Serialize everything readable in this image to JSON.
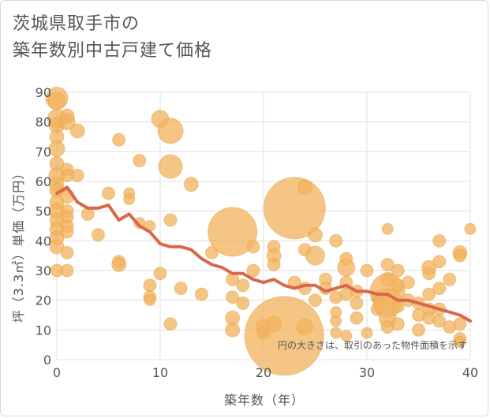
{
  "title": {
    "line1": "茨城県取手市の",
    "line2": "築年数別中古戸建て価格"
  },
  "colors": {
    "bubble": "#f2b25c",
    "bubble_stroke": "#e8a040",
    "trend": "#d9674c",
    "grid": "#e0e0e0",
    "text": "#555555"
  },
  "note": "円の大きさは、取引のあった物件面積を示す",
  "chart_data": {
    "type": "scatter",
    "title": "茨城県取手市の築年数別中古戸建て価格",
    "xlabel": "築年数（年）",
    "ylabel": "坪（3.3㎡）単価（万円）",
    "xlim": [
      0,
      40
    ],
    "ylim": [
      0,
      90
    ],
    "x_ticks": [
      "0",
      "10",
      "20",
      "30",
      "40"
    ],
    "y_ticks": [
      "0",
      "10",
      "20",
      "30",
      "40",
      "50",
      "60",
      "70",
      "80",
      "90"
    ],
    "grid": true,
    "trend": {
      "x": [
        0,
        1,
        2,
        3,
        4,
        5,
        6,
        7,
        8,
        9,
        10,
        11,
        12,
        13,
        14,
        15,
        16,
        17,
        18,
        19,
        20,
        21,
        22,
        23,
        24,
        25,
        26,
        27,
        28,
        29,
        30,
        31,
        32,
        33,
        34,
        35,
        36,
        37,
        38,
        39,
        40
      ],
      "y": [
        56,
        58,
        53,
        51,
        51,
        52,
        47,
        49,
        45,
        43,
        39,
        38,
        38,
        37,
        34,
        32,
        31,
        29,
        29,
        27,
        26,
        27,
        25,
        24,
        25,
        25,
        23,
        24,
        25,
        23,
        23,
        22,
        22,
        20,
        20,
        19,
        18,
        17,
        16,
        15,
        13
      ]
    },
    "points": [
      {
        "x": 0,
        "y": 88,
        "s": 14
      },
      {
        "x": 0,
        "y": 87,
        "s": 11
      },
      {
        "x": 0,
        "y": 81,
        "s": 12
      },
      {
        "x": 0,
        "y": 79,
        "s": 10
      },
      {
        "x": 0,
        "y": 75,
        "s": 9
      },
      {
        "x": 0,
        "y": 71,
        "s": 10
      },
      {
        "x": 0,
        "y": 66,
        "s": 9
      },
      {
        "x": 0,
        "y": 62,
        "s": 10
      },
      {
        "x": 0,
        "y": 59,
        "s": 9
      },
      {
        "x": 0,
        "y": 57,
        "s": 9
      },
      {
        "x": 0,
        "y": 53,
        "s": 9
      },
      {
        "x": 0,
        "y": 50,
        "s": 10
      },
      {
        "x": 0,
        "y": 47,
        "s": 9
      },
      {
        "x": 0,
        "y": 44,
        "s": 9
      },
      {
        "x": 0,
        "y": 41,
        "s": 9
      },
      {
        "x": 0,
        "y": 38,
        "s": 9
      },
      {
        "x": 0,
        "y": 30,
        "s": 8
      },
      {
        "x": 1,
        "y": 82,
        "s": 9
      },
      {
        "x": 1,
        "y": 80,
        "s": 10
      },
      {
        "x": 1,
        "y": 64,
        "s": 8
      },
      {
        "x": 1,
        "y": 62,
        "s": 8
      },
      {
        "x": 1,
        "y": 55,
        "s": 9
      },
      {
        "x": 1,
        "y": 50,
        "s": 8
      },
      {
        "x": 1,
        "y": 48,
        "s": 8
      },
      {
        "x": 1,
        "y": 45,
        "s": 8
      },
      {
        "x": 1,
        "y": 43,
        "s": 8
      },
      {
        "x": 1,
        "y": 36,
        "s": 8
      },
      {
        "x": 1,
        "y": 30,
        "s": 8
      },
      {
        "x": 2,
        "y": 77,
        "s": 9
      },
      {
        "x": 2,
        "y": 62,
        "s": 8
      },
      {
        "x": 3,
        "y": 49,
        "s": 8
      },
      {
        "x": 4,
        "y": 42,
        "s": 8
      },
      {
        "x": 5,
        "y": 56,
        "s": 8
      },
      {
        "x": 6,
        "y": 74,
        "s": 8
      },
      {
        "x": 6,
        "y": 33,
        "s": 8
      },
      {
        "x": 6,
        "y": 32,
        "s": 9
      },
      {
        "x": 7,
        "y": 56,
        "s": 7
      },
      {
        "x": 7,
        "y": 54,
        "s": 7
      },
      {
        "x": 8,
        "y": 67,
        "s": 8
      },
      {
        "x": 8,
        "y": 46,
        "s": 7
      },
      {
        "x": 9,
        "y": 45,
        "s": 7
      },
      {
        "x": 9,
        "y": 25,
        "s": 8
      },
      {
        "x": 9,
        "y": 21,
        "s": 8
      },
      {
        "x": 9,
        "y": 20,
        "s": 7
      },
      {
        "x": 10,
        "y": 81,
        "s": 11
      },
      {
        "x": 10,
        "y": 29,
        "s": 8
      },
      {
        "x": 11,
        "y": 77,
        "s": 16
      },
      {
        "x": 11,
        "y": 65,
        "s": 15
      },
      {
        "x": 11,
        "y": 47,
        "s": 8
      },
      {
        "x": 11,
        "y": 12,
        "s": 8
      },
      {
        "x": 12,
        "y": 24,
        "s": 8
      },
      {
        "x": 13,
        "y": 59,
        "s": 9
      },
      {
        "x": 14,
        "y": 22,
        "s": 8
      },
      {
        "x": 15,
        "y": 36,
        "s": 8
      },
      {
        "x": 17,
        "y": 43,
        "s": 31
      },
      {
        "x": 17,
        "y": 27,
        "s": 8
      },
      {
        "x": 17,
        "y": 21,
        "s": 8
      },
      {
        "x": 17,
        "y": 14,
        "s": 9
      },
      {
        "x": 17,
        "y": 10,
        "s": 9
      },
      {
        "x": 18,
        "y": 25,
        "s": 8
      },
      {
        "x": 18,
        "y": 19,
        "s": 8
      },
      {
        "x": 19,
        "y": 38,
        "s": 8
      },
      {
        "x": 19,
        "y": 30,
        "s": 8
      },
      {
        "x": 20,
        "y": 11,
        "s": 10
      },
      {
        "x": 20,
        "y": 9,
        "s": 8
      },
      {
        "x": 21,
        "y": 38,
        "s": 8
      },
      {
        "x": 21,
        "y": 35,
        "s": 9
      },
      {
        "x": 21,
        "y": 32,
        "s": 8
      },
      {
        "x": 21,
        "y": 12,
        "s": 10
      },
      {
        "x": 22,
        "y": 8,
        "s": 50
      },
      {
        "x": 23,
        "y": 51,
        "s": 39
      },
      {
        "x": 23,
        "y": 26,
        "s": 8
      },
      {
        "x": 24,
        "y": 58,
        "s": 9
      },
      {
        "x": 24,
        "y": 37,
        "s": 8
      },
      {
        "x": 24,
        "y": 24,
        "s": 8
      },
      {
        "x": 24,
        "y": 11,
        "s": 10
      },
      {
        "x": 25,
        "y": 42,
        "s": 9
      },
      {
        "x": 25,
        "y": 35,
        "s": 12
      },
      {
        "x": 25,
        "y": 20,
        "s": 8
      },
      {
        "x": 26,
        "y": 27,
        "s": 8
      },
      {
        "x": 26,
        "y": 24,
        "s": 8
      },
      {
        "x": 27,
        "y": 40,
        "s": 8
      },
      {
        "x": 27,
        "y": 21,
        "s": 8
      },
      {
        "x": 27,
        "y": 16,
        "s": 7
      },
      {
        "x": 27,
        "y": 13,
        "s": 7
      },
      {
        "x": 27,
        "y": 9,
        "s": 7
      },
      {
        "x": 28,
        "y": 34,
        "s": 8
      },
      {
        "x": 28,
        "y": 31,
        "s": 11
      },
      {
        "x": 28,
        "y": 26,
        "s": 8
      },
      {
        "x": 28,
        "y": 22,
        "s": 8
      },
      {
        "x": 28,
        "y": 8,
        "s": 7
      },
      {
        "x": 29,
        "y": 23,
        "s": 8
      },
      {
        "x": 29,
        "y": 19,
        "s": 8
      },
      {
        "x": 29,
        "y": 14,
        "s": 8
      },
      {
        "x": 30,
        "y": 30,
        "s": 8
      },
      {
        "x": 30,
        "y": 9,
        "s": 7
      },
      {
        "x": 31,
        "y": 21,
        "s": 8
      },
      {
        "x": 31,
        "y": 17,
        "s": 8
      },
      {
        "x": 32,
        "y": 44,
        "s": 7
      },
      {
        "x": 32,
        "y": 32,
        "s": 8
      },
      {
        "x": 32,
        "y": 27,
        "s": 9
      },
      {
        "x": 32,
        "y": 23,
        "s": 22
      },
      {
        "x": 32,
        "y": 19,
        "s": 18
      },
      {
        "x": 32,
        "y": 14,
        "s": 11
      },
      {
        "x": 32,
        "y": 11,
        "s": 8
      },
      {
        "x": 33,
        "y": 30,
        "s": 8
      },
      {
        "x": 33,
        "y": 25,
        "s": 8
      },
      {
        "x": 33,
        "y": 18,
        "s": 8
      },
      {
        "x": 33,
        "y": 12,
        "s": 8
      },
      {
        "x": 34,
        "y": 26,
        "s": 8
      },
      {
        "x": 34,
        "y": 20,
        "s": 8
      },
      {
        "x": 35,
        "y": 19,
        "s": 8
      },
      {
        "x": 35,
        "y": 15,
        "s": 8
      },
      {
        "x": 35,
        "y": 10,
        "s": 8
      },
      {
        "x": 36,
        "y": 31,
        "s": 9
      },
      {
        "x": 36,
        "y": 29,
        "s": 8
      },
      {
        "x": 36,
        "y": 22,
        "s": 8
      },
      {
        "x": 36,
        "y": 17,
        "s": 8
      },
      {
        "x": 36,
        "y": 14,
        "s": 8
      },
      {
        "x": 37,
        "y": 40,
        "s": 8
      },
      {
        "x": 37,
        "y": 33,
        "s": 8
      },
      {
        "x": 37,
        "y": 24,
        "s": 8
      },
      {
        "x": 37,
        "y": 17,
        "s": 8
      },
      {
        "x": 37,
        "y": 13,
        "s": 8
      },
      {
        "x": 38,
        "y": 27,
        "s": 8
      },
      {
        "x": 38,
        "y": 11,
        "s": 8
      },
      {
        "x": 39,
        "y": 36,
        "s": 9
      },
      {
        "x": 39,
        "y": 35,
        "s": 8
      },
      {
        "x": 39,
        "y": 12,
        "s": 8
      },
      {
        "x": 39,
        "y": 7,
        "s": 8
      },
      {
        "x": 39,
        "y": 6,
        "s": 7
      },
      {
        "x": 40,
        "y": 44,
        "s": 7
      }
    ]
  }
}
